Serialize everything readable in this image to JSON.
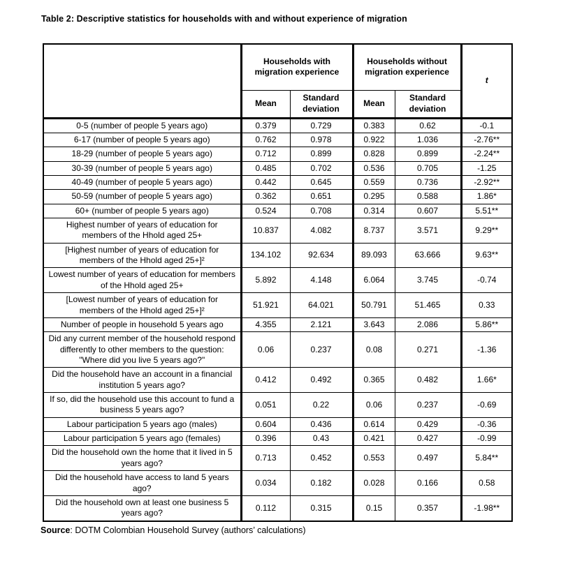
{
  "page": {
    "title": "Table 2: Descriptive statistics for households with and without experience of migration"
  },
  "table": {
    "header": {
      "group_with": "Households with migration experience",
      "group_without": "Households without migration experience",
      "t_label": "t",
      "mean_with": "Mean",
      "sd_with": "Standard deviation",
      "mean_without": "Mean",
      "sd_without": "Standard deviation"
    },
    "rows": [
      {
        "label": "0-5 (number of people 5 years ago)",
        "values": [
          "0.379",
          "0.729",
          "0.383",
          "0.62",
          "-0.1"
        ]
      },
      {
        "label": "6-17 (number of people 5 years ago)",
        "values": [
          "0.762",
          "0.978",
          "0.922",
          "1.036",
          "-2.76**"
        ]
      },
      {
        "label": "18-29 (number of people 5 years ago)",
        "values": [
          "0.712",
          "0.899",
          "0.828",
          "0.899",
          "-2.24**"
        ]
      },
      {
        "label": "30-39 (number of people 5 years ago)",
        "values": [
          "0.485",
          "0.702",
          "0.536",
          "0.705",
          "-1.25"
        ]
      },
      {
        "label": "40-49 (number of people 5 years ago)",
        "values": [
          "0.442",
          "0.645",
          "0.559",
          "0.736",
          "-2.92**"
        ]
      },
      {
        "label": "50-59 (number of people 5 years ago)",
        "values": [
          "0.362",
          "0.651",
          "0.295",
          "0.588",
          "1.86*"
        ]
      },
      {
        "label": "60+ (number of people 5 years ago)",
        "values": [
          "0.524",
          "0.708",
          "0.314",
          "0.607",
          "5.51**"
        ]
      },
      {
        "label": "Highest number of years of education for members of the Hhold aged 25+",
        "values": [
          "10.837",
          "4.082",
          "8.737",
          "3.571",
          "9.29**"
        ]
      },
      {
        "label": "[Highest number of years of education for members of the Hhold aged 25+]²",
        "values": [
          "134.102",
          "92.634",
          "89.093",
          "63.666",
          "9.63**"
        ]
      },
      {
        "label": "Lowest number of years of education for members of the Hhold aged 25+",
        "values": [
          "5.892",
          "4.148",
          "6.064",
          "3.745",
          "-0.74"
        ]
      },
      {
        "label": "[Lowest number of years of education for members of the Hhold aged 25+]²",
        "values": [
          "51.921",
          "64.021",
          "50.791",
          "51.465",
          "0.33"
        ]
      },
      {
        "label": "Number of people in household 5 years ago",
        "values": [
          "4.355",
          "2.121",
          "3.643",
          "2.086",
          "5.86**"
        ]
      },
      {
        "label": "Did any current member of the household respond differently to other members to the question: \"Where did you live 5 years ago?\"",
        "values": [
          "0.06",
          "0.237",
          "0.08",
          "0.271",
          "-1.36"
        ]
      },
      {
        "label": "Did the household have an account in a financial institution 5 years ago?",
        "values": [
          "0.412",
          "0.492",
          "0.365",
          "0.482",
          "1.66*"
        ]
      },
      {
        "label": "If so, did the household use this account to fund a business 5 years ago?",
        "values": [
          "0.051",
          "0.22",
          "0.06",
          "0.237",
          "-0.69"
        ]
      },
      {
        "label": "Labour participation 5 years ago (males)",
        "values": [
          "0.604",
          "0.436",
          "0.614",
          "0.429",
          "-0.36"
        ]
      },
      {
        "label": "Labour participation 5 years ago (females)",
        "values": [
          "0.396",
          "0.43",
          "0.421",
          "0.427",
          "-0.99"
        ]
      },
      {
        "label": "Did the household own the home that it lived in 5 years ago?",
        "values": [
          "0.713",
          "0.452",
          "0.553",
          "0.497",
          "5.84**"
        ]
      },
      {
        "label": "Did the household have access to land 5 years ago?",
        "values": [
          "0.034",
          "0.182",
          "0.028",
          "0.166",
          "0.58"
        ]
      },
      {
        "label": "Did the household own at least one business 5 years ago?",
        "values": [
          "0.112",
          "0.315",
          "0.15",
          "0.357",
          "-1.98**"
        ]
      }
    ]
  },
  "footer": {
    "source_label": "Source",
    "source_text": ": DOTM Colombian Household Survey (authors’ calculations)"
  },
  "colors": {
    "text": "#000000",
    "border": "#000000",
    "background": "#ffffff"
  }
}
